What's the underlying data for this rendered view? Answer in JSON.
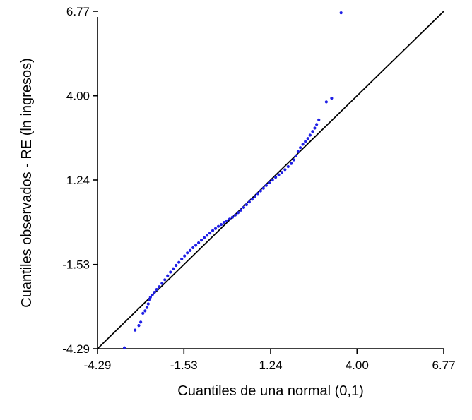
{
  "chart_data": {
    "type": "scatter",
    "title": "",
    "xlabel": "Cuantiles de una normal (0,1)",
    "ylabel": "Cuantiles observados - RE (ln ingresos)",
    "xlim": [
      -4.29,
      6.77
    ],
    "ylim": [
      -4.29,
      6.77
    ],
    "x_ticks": [
      "-4.29",
      "-1.53",
      "1.24",
      "4.00",
      "6.77"
    ],
    "y_ticks": [
      "-4.29",
      "-1.53",
      "1.24",
      "4.00",
      "6.77"
    ],
    "grid": false,
    "legend": "none",
    "reference_line": {
      "x": [
        -4.29,
        6.77
      ],
      "y": [
        -4.29,
        6.77
      ],
      "color": "#000000"
    },
    "point_color": "#1f1fe6",
    "series": [
      {
        "points": [
          [
            -3.43,
            -4.26
          ],
          [
            -3.09,
            -3.68
          ],
          [
            -2.97,
            -3.53
          ],
          [
            -2.91,
            -3.42
          ],
          [
            -2.84,
            -3.13
          ],
          [
            -2.77,
            -3.05
          ],
          [
            -2.71,
            -2.94
          ],
          [
            -2.67,
            -2.82
          ],
          [
            -2.64,
            -2.68
          ],
          [
            -2.6,
            -2.6
          ],
          [
            -2.54,
            -2.53
          ],
          [
            -2.47,
            -2.44
          ],
          [
            -2.4,
            -2.35
          ],
          [
            -2.32,
            -2.26
          ],
          [
            -2.23,
            -2.15
          ],
          [
            -2.14,
            -2.03
          ],
          [
            -2.05,
            -1.9
          ],
          [
            -1.96,
            -1.78
          ],
          [
            -1.87,
            -1.67
          ],
          [
            -1.78,
            -1.56
          ],
          [
            -1.69,
            -1.46
          ],
          [
            -1.6,
            -1.35
          ],
          [
            -1.51,
            -1.25
          ],
          [
            -1.42,
            -1.15
          ],
          [
            -1.33,
            -1.07
          ],
          [
            -1.24,
            -0.98
          ],
          [
            -1.15,
            -0.9
          ],
          [
            -1.06,
            -0.82
          ],
          [
            -0.97,
            -0.73
          ],
          [
            -0.88,
            -0.65
          ],
          [
            -0.79,
            -0.57
          ],
          [
            -0.7,
            -0.5
          ],
          [
            -0.61,
            -0.42
          ],
          [
            -0.52,
            -0.35
          ],
          [
            -0.43,
            -0.28
          ],
          [
            -0.34,
            -0.22
          ],
          [
            -0.25,
            -0.15
          ],
          [
            -0.16,
            -0.1
          ],
          [
            -0.07,
            -0.04
          ],
          [
            0.02,
            0.02
          ],
          [
            0.11,
            0.09
          ],
          [
            0.2,
            0.17
          ],
          [
            0.29,
            0.25
          ],
          [
            0.38,
            0.34
          ],
          [
            0.47,
            0.43
          ],
          [
            0.56,
            0.52
          ],
          [
            0.65,
            0.61
          ],
          [
            0.74,
            0.7
          ],
          [
            0.83,
            0.79
          ],
          [
            0.92,
            0.88
          ],
          [
            1.01,
            0.97
          ],
          [
            1.1,
            1.06
          ],
          [
            1.2,
            1.15
          ],
          [
            1.3,
            1.24
          ],
          [
            1.4,
            1.33
          ],
          [
            1.5,
            1.41
          ],
          [
            1.6,
            1.49
          ],
          [
            1.7,
            1.58
          ],
          [
            1.8,
            1.68
          ],
          [
            1.9,
            1.78
          ],
          [
            1.98,
            1.9
          ],
          [
            2.05,
            2.03
          ],
          [
            2.12,
            2.17
          ],
          [
            2.19,
            2.3
          ],
          [
            2.27,
            2.41
          ],
          [
            2.35,
            2.5
          ],
          [
            2.43,
            2.6
          ],
          [
            2.5,
            2.71
          ],
          [
            2.58,
            2.83
          ],
          [
            2.65,
            2.94
          ],
          [
            2.71,
            3.06
          ],
          [
            2.78,
            3.21
          ],
          [
            3.02,
            3.8
          ],
          [
            3.19,
            3.92
          ],
          [
            3.49,
            6.72
          ]
        ]
      }
    ]
  }
}
